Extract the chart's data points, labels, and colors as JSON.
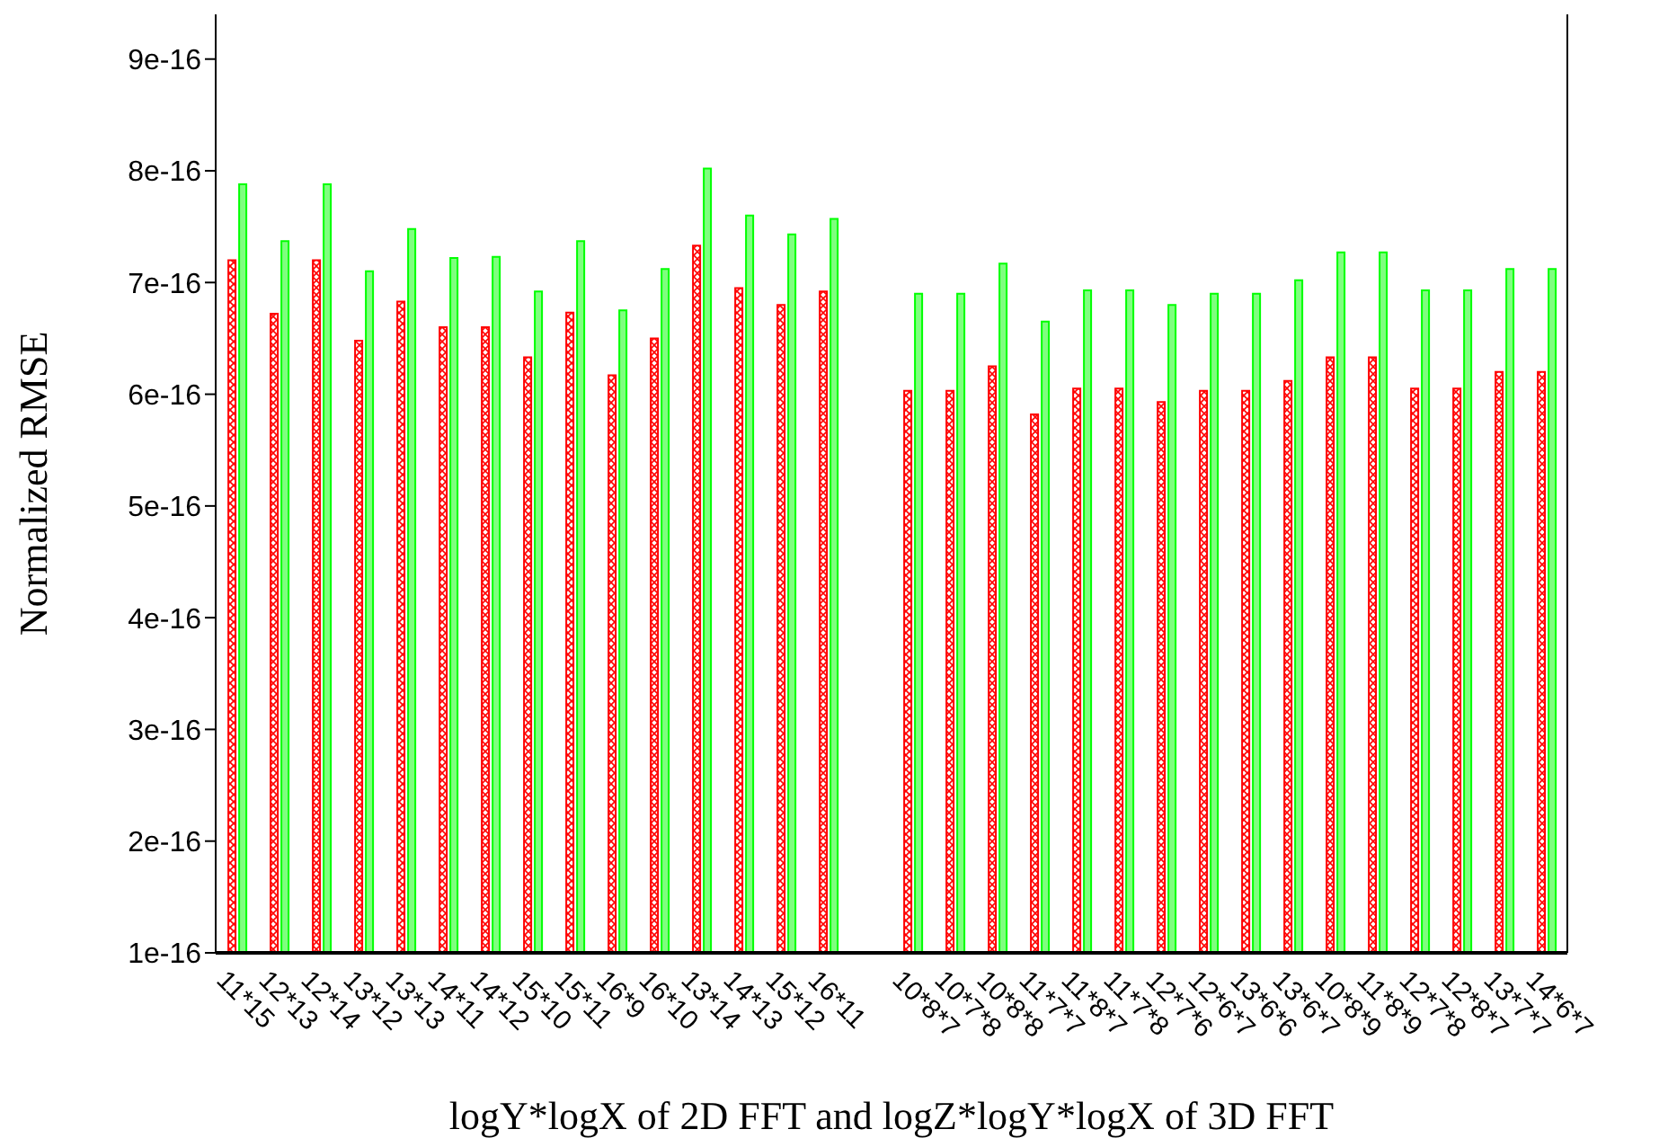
{
  "chart_data": {
    "type": "bar",
    "xlabel": "logY*logX of 2D FFT   and   logZ*logY*logX of 3D FFT",
    "ylabel": "Normalized RMSE",
    "categories": [
      "11*15",
      "12*13",
      "12*14",
      "13*12",
      "13*13",
      "14*11",
      "14*12",
      "15*10",
      "15*11",
      "16*9",
      "16*10",
      "13*14",
      "14*13",
      "15*12",
      "16*11",
      null,
      "10*8*7",
      "10*7*8",
      "10*8*8",
      "11*7*7",
      "11*8*7",
      "11*7*8",
      "12*7*6",
      "12*6*7",
      "13*6*6",
      "13*6*7",
      "10*8*9",
      "11*8*9",
      "12*7*8",
      "12*8*7",
      "13*7*7",
      "14*6*7"
    ],
    "series": [
      {
        "color": "#ff0000",
        "values": [
          7.2e-16,
          6.72e-16,
          7.2e-16,
          6.48e-16,
          6.83e-16,
          6.6e-16,
          6.6e-16,
          6.33e-16,
          6.73e-16,
          6.17e-16,
          6.5e-16,
          7.33e-16,
          6.95e-16,
          6.8e-16,
          6.92e-16,
          null,
          6.03e-16,
          6.03e-16,
          6.25e-16,
          5.82e-16,
          6.05e-16,
          6.05e-16,
          5.93e-16,
          6.03e-16,
          6.03e-16,
          6.12e-16,
          6.33e-16,
          6.33e-16,
          6.05e-16,
          6.05e-16,
          6.2e-16,
          6.2e-16
        ]
      },
      {
        "color": "#00ff00",
        "values": [
          7.88e-16,
          7.37e-16,
          7.88e-16,
          7.1e-16,
          7.48e-16,
          7.22e-16,
          7.23e-16,
          6.92e-16,
          7.37e-16,
          6.75e-16,
          7.12e-16,
          8.02e-16,
          7.6e-16,
          7.43e-16,
          7.57e-16,
          null,
          6.9e-16,
          6.9e-16,
          7.17e-16,
          6.65e-16,
          6.93e-16,
          6.93e-16,
          6.8e-16,
          6.9e-16,
          6.9e-16,
          7.02e-16,
          7.27e-16,
          7.27e-16,
          6.93e-16,
          6.93e-16,
          7.12e-16,
          7.12e-16
        ]
      }
    ],
    "ylim": [
      1e-16,
      9.4e-16
    ],
    "yticks": [
      1e-16,
      2e-16,
      3e-16,
      4e-16,
      5e-16,
      6e-16,
      7e-16,
      8e-16,
      9e-16
    ],
    "grid": false,
    "legend": false
  }
}
